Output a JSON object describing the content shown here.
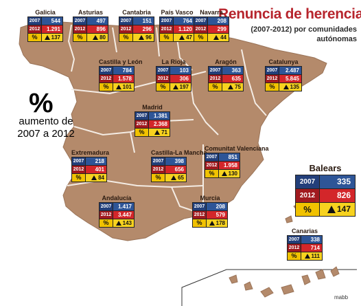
{
  "title": "Renuncia de herencias",
  "subtitle": "(2007-2012) por comunidades autónomas",
  "legend": {
    "symbol": "%",
    "text": "aumento de 2007 a 2012"
  },
  "credit": "mabb",
  "colors": {
    "land": "#b48a6b",
    "border": "#ffffff",
    "row_2007": "#2e5597",
    "row_2012": "#d3262a",
    "row_pct": "#f7d21f",
    "title": "#b7252d"
  },
  "year_labels": {
    "y2007": "2007",
    "y2012": "2012",
    "pct": "%"
  },
  "regions": [
    {
      "key": "galicia",
      "name": "Galicia",
      "v2007": "544",
      "v2012": "1.291",
      "pct": "137"
    },
    {
      "key": "asturias",
      "name": "Asturias",
      "v2007": "497",
      "v2012": "896",
      "pct": "80"
    },
    {
      "key": "cantabria",
      "name": "Cantabria",
      "v2007": "151",
      "v2012": "296",
      "pct": "96"
    },
    {
      "key": "pais-vasco",
      "name": "País Vasco",
      "v2007": "764",
      "v2012": "1.120",
      "pct": "47"
    },
    {
      "key": "navarra",
      "name": "Navarra",
      "v2007": "208",
      "v2012": "299",
      "pct": "44"
    },
    {
      "key": "castilla-y-leon",
      "name": "Castilla y León",
      "v2007": "784",
      "v2012": "1.578",
      "pct": "101"
    },
    {
      "key": "la-rioja",
      "name": "La Rioja",
      "v2007": "103",
      "v2012": "306",
      "pct": "197"
    },
    {
      "key": "aragon",
      "name": "Aragón",
      "v2007": "363",
      "v2012": "635",
      "pct": "75"
    },
    {
      "key": "catalunya",
      "name": "Catalunya",
      "v2007": "2.487",
      "v2012": "5.845",
      "pct": "135"
    },
    {
      "key": "madrid",
      "name": "Madrid",
      "v2007": "1.381",
      "v2012": "2.368",
      "pct": "71"
    },
    {
      "key": "extremadura",
      "name": "Extremadura",
      "v2007": "218",
      "v2012": "401",
      "pct": "84"
    },
    {
      "key": "castilla-la-mancha",
      "name": "Castilla-La Mancha",
      "v2007": "398",
      "v2012": "656",
      "pct": "65"
    },
    {
      "key": "comunitat-valenciana",
      "name": "Comunitat Valenciana",
      "v2007": "851",
      "v2012": "1.958",
      "pct": "130"
    },
    {
      "key": "baleares",
      "name": "Balears",
      "v2007": "335",
      "v2012": "826",
      "pct": "147"
    },
    {
      "key": "andalucia",
      "name": "Andalucía",
      "v2007": "1.417",
      "v2012": "3.447",
      "pct": "143"
    },
    {
      "key": "murcia",
      "name": "Murcia",
      "v2007": "208",
      "v2012": "579",
      "pct": "178"
    },
    {
      "key": "canarias",
      "name": "Canarias",
      "v2007": "338",
      "v2012": "714",
      "pct": "111"
    }
  ]
}
